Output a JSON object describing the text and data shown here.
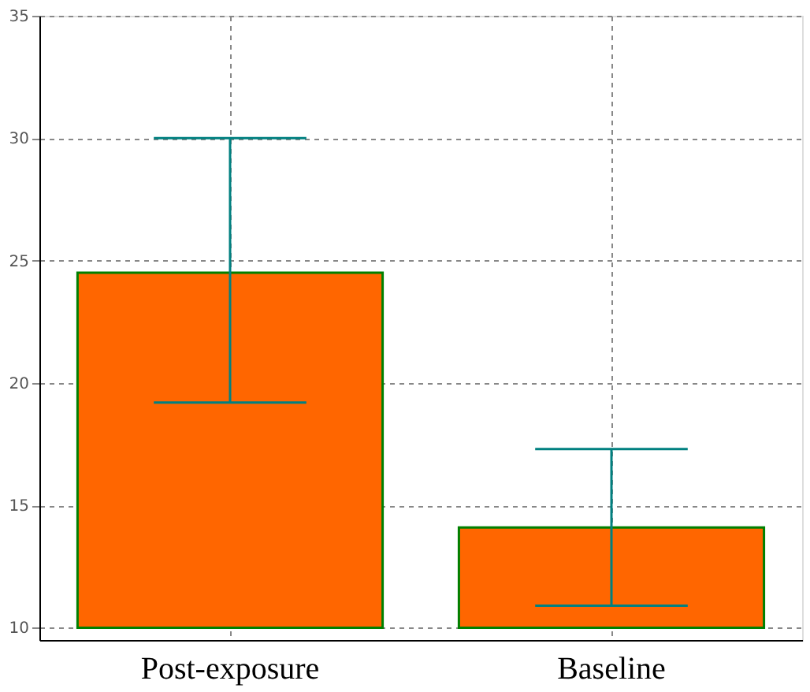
{
  "chart_data": {
    "type": "bar",
    "categories": [
      "Post-exposure",
      "Baseline"
    ],
    "values": [
      14.5,
      4.1
    ],
    "base": [
      10,
      10
    ],
    "errors": [
      [
        19.2,
        30.0
      ],
      [
        10.9,
        17.3
      ]
    ],
    "color": "#ff6600",
    "ylim": [
      9.5,
      35
    ],
    "yticks": [
      10,
      15,
      20,
      25,
      30,
      35
    ],
    "grid": true
  }
}
